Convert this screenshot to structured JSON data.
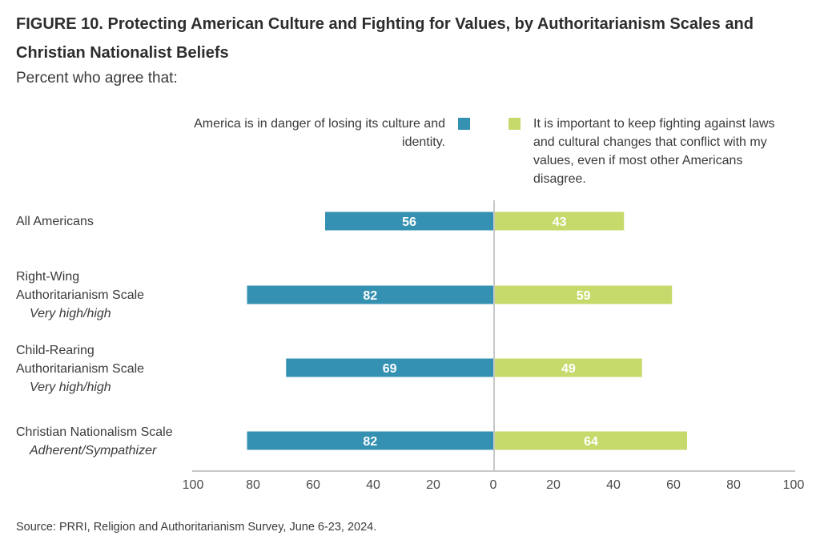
{
  "figure": {
    "title": "FIGURE 10.  Protecting American Culture and Fighting for Values, by Authoritarianism Scales and Christian Nationalist Beliefs",
    "subtitle": "Percent who agree that:",
    "source": "Source: PRRI, Religion and Authoritarianism Survey, June 6-23, 2024."
  },
  "rows": [
    {
      "lines": [
        "All Americans"
      ],
      "sub": ""
    },
    {
      "lines": [
        "Right-Wing",
        "Authoritarianism Scale"
      ],
      "sub": "Very high/high"
    },
    {
      "lines": [
        "Child-Rearing",
        "Authoritarianism Scale"
      ],
      "sub": "Very high/high"
    },
    {
      "lines": [
        "Christian Nationalism Scale"
      ],
      "sub": "Adherent/Sympathizer"
    }
  ],
  "chart_data": {
    "type": "bar",
    "orientation": "horizontal",
    "layout": "diverging",
    "categories": [
      "All Americans",
      "Right-Wing Authoritarianism Scale (Very high/high)",
      "Child-Rearing Authoritarianism Scale (Very high/high)",
      "Christian Nationalism Scale (Adherent/Sympathizer)"
    ],
    "series": [
      {
        "name": "America is in danger of losing its culture and identity.",
        "values": [
          56,
          82,
          69,
          82
        ],
        "color": "#3491b2",
        "side": "left"
      },
      {
        "name": "It is important to keep fighting against laws and cultural changes that conflict with my values, even if most other Americans disagree.",
        "values": [
          43,
          59,
          49,
          64
        ],
        "color": "#c5da6b",
        "side": "right"
      }
    ],
    "xlim": [
      0,
      100
    ],
    "tick_labels": [
      "100",
      "80",
      "60",
      "40",
      "20",
      "0",
      "20",
      "40",
      "60",
      "80",
      "100"
    ],
    "data_label_color": "#ffffff",
    "grid": false,
    "legend_position": "top"
  }
}
